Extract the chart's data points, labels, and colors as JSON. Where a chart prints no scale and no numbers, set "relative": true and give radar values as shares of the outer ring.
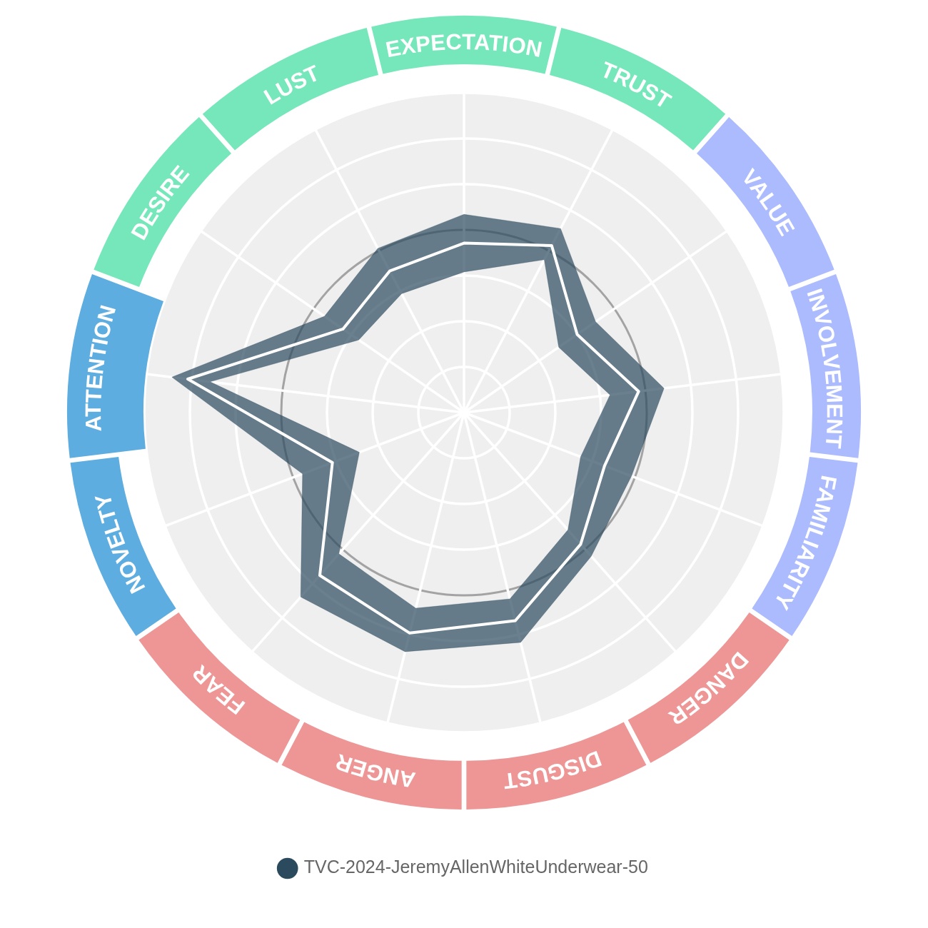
{
  "chart_data": {
    "type": "radar",
    "relative": true,
    "categories": [
      "EXPECTATION",
      "TRUST",
      "VALUE",
      "INVOLVEMENT",
      "FAMILIARITY",
      "DANGER",
      "DISGUST",
      "ANGER",
      "FEAR",
      "NOVELTY",
      "ATTENTION",
      "DESIRE",
      "LUST"
    ],
    "colors": [
      "#75e7bb",
      "#75e7bb",
      "#abbbfd",
      "#abbbfd",
      "#abbbfd",
      "#ee9595",
      "#ee9595",
      "#ee9595",
      "#ee9595",
      "#5eade0",
      "#5eade0",
      "#75e7bb",
      "#75e7bb"
    ],
    "series": [
      {
        "name": "TVC-2024-JeremyAllenWhiteUnderwear-50",
        "type": "area",
        "color": "#2c4a5e",
        "values": [
          0.62,
          0.65,
          0.5,
          0.63,
          0.56,
          0.6,
          0.74,
          0.77,
          0.77,
          0.54,
          0.92,
          0.53,
          0.58
        ]
      },
      {
        "color": "#2c4a5e",
        "values": [
          0.44,
          0.54,
          0.36,
          0.46,
          0.39,
          0.49,
          0.6,
          0.63,
          0.59,
          0.35,
          0.8,
          0.4,
          0.42
        ]
      },
      {
        "color": "#ffffff",
        "values": [
          0.53,
          0.59,
          0.43,
          0.55,
          0.47,
          0.55,
          0.67,
          0.71,
          0.68,
          0.44,
          0.87,
          0.46,
          0.5
        ]
      }
    ],
    "grid": true,
    "legend": "bottom"
  }
}
